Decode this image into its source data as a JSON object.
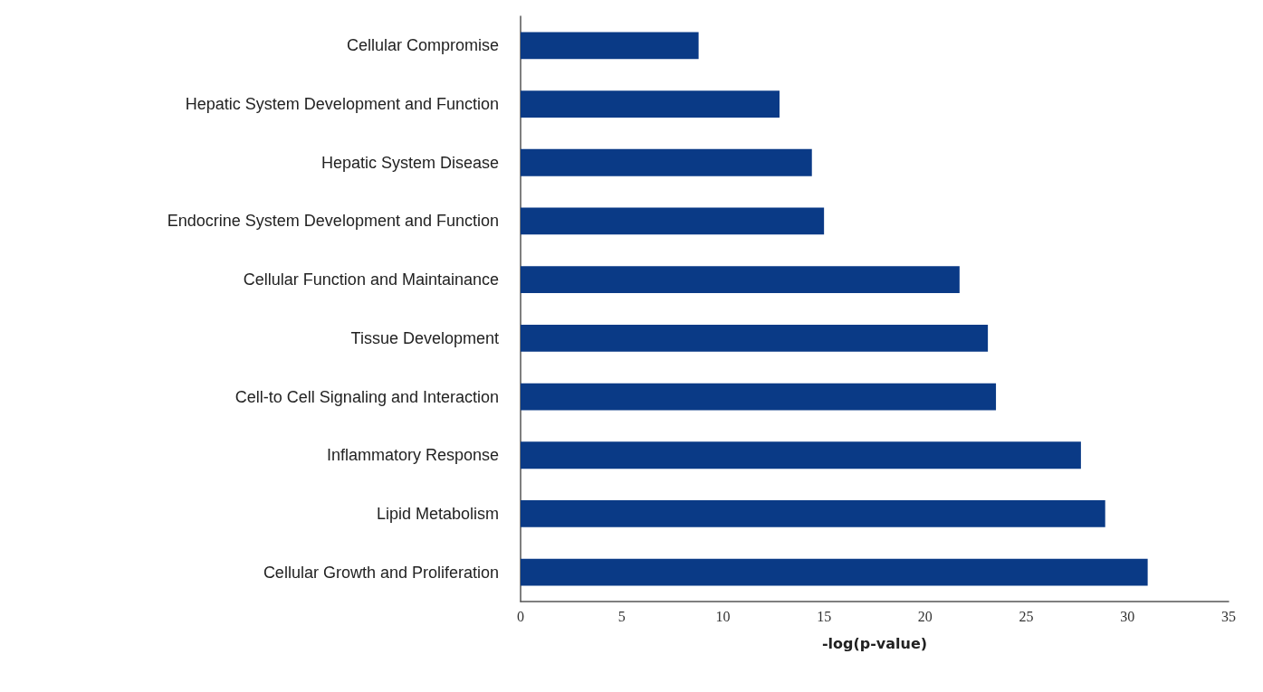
{
  "chart_data": {
    "type": "bar",
    "orientation": "horizontal",
    "xlabel": "-log(p-value)",
    "categories": [
      "Cellular Compromise",
      "Hepatic System Development and Function",
      "Hepatic System Disease",
      "Endocrine System Development and Function",
      "Cellular Function and Maintainance",
      "Tissue Development",
      "Cell-to Cell Signaling and Interaction",
      "Inflammatory Response",
      "Lipid Metabolism",
      "Cellular Growth and Proliferation"
    ],
    "values": [
      8.8,
      12.8,
      14.4,
      15.0,
      21.7,
      23.1,
      23.5,
      27.7,
      28.9,
      31.0
    ],
    "color": "#0a3a86",
    "xlim": [
      0,
      35
    ],
    "xticks": [
      0,
      5,
      10,
      15,
      20,
      25,
      30,
      35
    ],
    "grid": false
  }
}
